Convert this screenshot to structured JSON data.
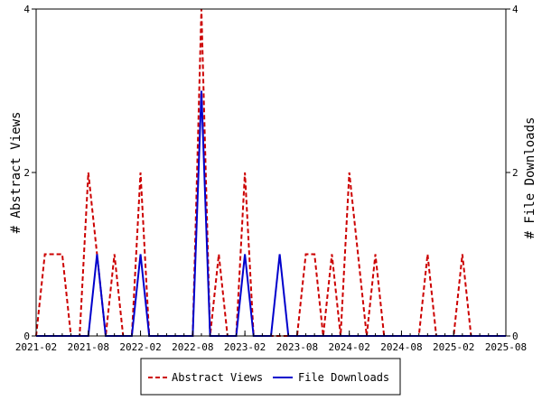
{
  "chart_data": {
    "type": "line",
    "x_tick_labels": [
      "2021-02",
      "2021-08",
      "2022-02",
      "2022-08",
      "2023-02",
      "2023-08",
      "2024-02",
      "2024-08",
      "2025-02",
      "2025-08"
    ],
    "x_range": [
      "2021-02",
      "2025-08"
    ],
    "ylabel": "# Abstract Views",
    "y2label": "# File Downloads",
    "ylim": [
      0,
      4
    ],
    "y2lim": [
      0,
      4
    ],
    "yticks": [
      0,
      2,
      4
    ],
    "y2ticks": [
      0,
      2,
      4
    ],
    "grid": false,
    "legend_position": "bottom-center",
    "series": [
      {
        "name": "Abstract Views",
        "axis": "left",
        "color": "#cc0000",
        "style": "dashed",
        "x": [
          "2021-02",
          "2021-03",
          "2021-04",
          "2021-05",
          "2021-06",
          "2021-07",
          "2021-08",
          "2021-09",
          "2021-10",
          "2021-11",
          "2021-12",
          "2022-01",
          "2022-02",
          "2022-03",
          "2022-04",
          "2022-05",
          "2022-06",
          "2022-07",
          "2022-08",
          "2022-09",
          "2022-10",
          "2022-11",
          "2022-12",
          "2023-01",
          "2023-02",
          "2023-03",
          "2023-04",
          "2023-05",
          "2023-06",
          "2023-07",
          "2023-08",
          "2023-09",
          "2023-10",
          "2023-11",
          "2023-12",
          "2024-01",
          "2024-02",
          "2024-03",
          "2024-04",
          "2024-05",
          "2024-06",
          "2024-07",
          "2024-08",
          "2024-09",
          "2024-10",
          "2024-11",
          "2024-12",
          "2025-01",
          "2025-02",
          "2025-03",
          "2025-04",
          "2025-05",
          "2025-06",
          "2025-07",
          "2025-08"
        ],
        "values": [
          0,
          1,
          1,
          1,
          0,
          0,
          2,
          1,
          0,
          1,
          0,
          0,
          2,
          0,
          0,
          0,
          0,
          0,
          0,
          4,
          0,
          1,
          0,
          0,
          2,
          0,
          0,
          0,
          0,
          0,
          0,
          1,
          1,
          0,
          1,
          0,
          2,
          1,
          0,
          1,
          0,
          0,
          0,
          0,
          0,
          1,
          0,
          0,
          0,
          1,
          0,
          0,
          0,
          0,
          0
        ]
      },
      {
        "name": "File Downloads",
        "axis": "right",
        "color": "#0000cc",
        "style": "solid",
        "x": [
          "2021-02",
          "2021-03",
          "2021-04",
          "2021-05",
          "2021-06",
          "2021-07",
          "2021-08",
          "2021-09",
          "2021-10",
          "2021-11",
          "2021-12",
          "2022-01",
          "2022-02",
          "2022-03",
          "2022-04",
          "2022-05",
          "2022-06",
          "2022-07",
          "2022-08",
          "2022-09",
          "2022-10",
          "2022-11",
          "2022-12",
          "2023-01",
          "2023-02",
          "2023-03",
          "2023-04",
          "2023-05",
          "2023-06",
          "2023-07",
          "2023-08",
          "2023-09",
          "2023-10",
          "2023-11",
          "2023-12",
          "2024-01",
          "2024-02",
          "2024-03",
          "2024-04",
          "2024-05",
          "2024-06",
          "2024-07",
          "2024-08",
          "2024-09",
          "2024-10",
          "2024-11",
          "2024-12",
          "2025-01",
          "2025-02",
          "2025-03",
          "2025-04",
          "2025-05",
          "2025-06",
          "2025-07",
          "2025-08"
        ],
        "values": [
          0,
          0,
          0,
          0,
          0,
          0,
          0,
          1,
          0,
          0,
          0,
          0,
          1,
          0,
          0,
          0,
          0,
          0,
          0,
          3,
          0,
          0,
          0,
          0,
          1,
          0,
          0,
          0,
          1,
          0,
          0,
          0,
          0,
          0,
          0,
          0,
          0,
          0,
          0,
          0,
          0,
          0,
          0,
          0,
          0,
          0,
          0,
          0,
          0,
          0,
          0,
          0,
          0,
          0,
          0
        ]
      }
    ]
  }
}
